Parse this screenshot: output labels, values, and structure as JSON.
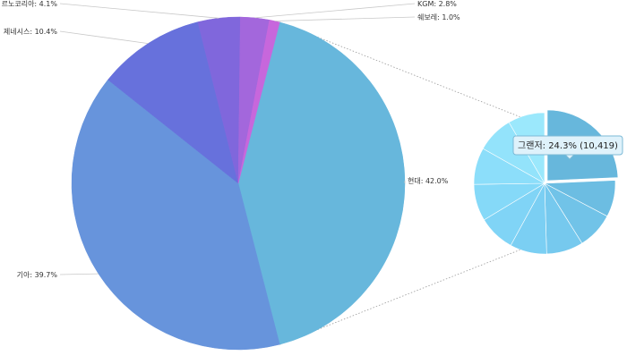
{
  "chart_data": {
    "type": "pie",
    "categories": [
      "현대",
      "기아",
      "제네시스",
      "르노코리아",
      "KGM",
      "쉐보레"
    ],
    "values": [
      42.0,
      39.7,
      10.4,
      4.1,
      2.8,
      1.0
    ],
    "labels": [
      "현대: 42.0%",
      "기아: 39.7%",
      "제네시스: 10.4%",
      "르노코리아: 4.1%",
      "KGM: 2.8%",
      "쉐보레: 1.0%"
    ],
    "colors": [
      "#67b7dc",
      "#6794dc",
      "#6771dc",
      "#8067dc",
      "#a367dc",
      "#c767dc"
    ],
    "drilldown": {
      "parent": "현대",
      "highlighted_label": "그랜저: 24.3% (10,419)",
      "highlighted_value": 24.3,
      "highlighted_count": 10419,
      "colors": [
        "#67b7dc",
        "#6cbde2",
        "#71c3e8",
        "#76c9ee",
        "#7bcff3",
        "#80d4f6",
        "#85d9f8",
        "#8cdefa",
        "#93e3fb",
        "#9be8fc"
      ]
    }
  }
}
